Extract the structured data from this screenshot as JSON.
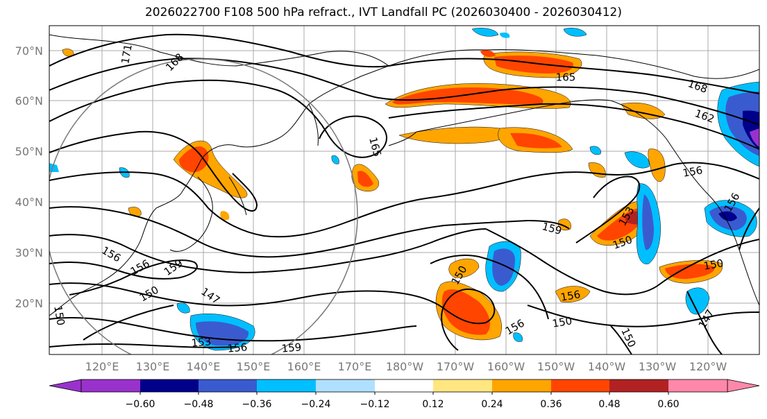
{
  "title": "2026022700 F108 500 hPa refract., IVT Landfall PC (2026030400 - 2026030412)",
  "latitude_labels": [
    "70°N",
    "60°N",
    "50°N",
    "40°N",
    "30°N",
    "20°N"
  ],
  "longitude_labels": [
    "120°E",
    "130°E",
    "140°E",
    "150°E",
    "160°E",
    "170°E",
    "180°W",
    "170°W",
    "160°W",
    "150°W",
    "140°W",
    "130°W",
    "120°W"
  ],
  "contour_labels": [
    "171",
    "168",
    "165",
    "165",
    "168",
    "162",
    "156",
    "156",
    "159",
    "156",
    "153",
    "150",
    "150",
    "150",
    "159",
    "156",
    "150",
    "147",
    "153",
    "156",
    "159",
    "150",
    "156",
    "156",
    "150",
    "150",
    "147"
  ],
  "colorbar": {
    "colors": [
      "#9932cc",
      "#00008b",
      "#3a5bcf",
      "#00bfff",
      "#b0e0ff",
      "#ffffff",
      "#ffe680",
      "#ffa500",
      "#ff4500",
      "#b22222",
      "#ff88aa"
    ],
    "ticks": [
      "−0.60",
      "−0.48",
      "−0.36",
      "−0.24",
      "−0.12",
      "0.12",
      "0.24",
      "0.36",
      "0.48",
      "0.60"
    ]
  }
}
